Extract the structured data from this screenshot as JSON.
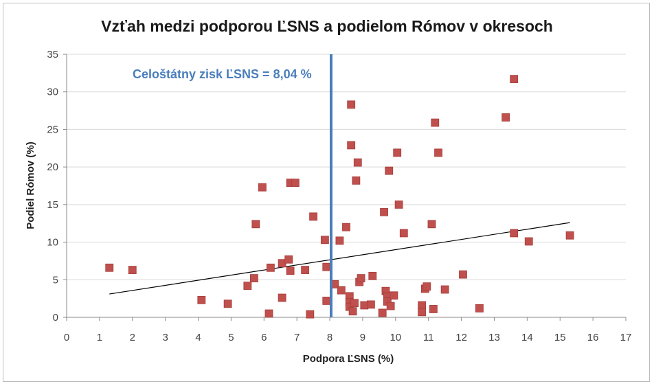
{
  "chart_data": {
    "type": "scatter",
    "title": "Vzťah medzi podporou ĽSNS a podielom Rómov v okresoch",
    "xlabel": "Podpora ĽSNS (%)",
    "ylabel": "Podiel Rómov (%)",
    "xlim": [
      0,
      17
    ],
    "ylim": [
      0,
      35
    ],
    "xticks": [
      "0",
      "1",
      "2",
      "3",
      "4",
      "5",
      "6",
      "7",
      "8",
      "9",
      "10",
      "11",
      "12",
      "13",
      "14",
      "15",
      "16",
      "17"
    ],
    "yticks": [
      "0",
      "5",
      "10",
      "15",
      "20",
      "25",
      "30",
      "35"
    ],
    "grid": "horizontal",
    "legend": "none",
    "colors": {
      "points": "#c0504d",
      "vline": "#4a7ebb",
      "trendline": "#000000",
      "grid": "#d9d9d9"
    },
    "reference_line": {
      "x": 8.04,
      "label": "Celoštátny zisk ĽSNS = 8,04 %"
    },
    "trendline": {
      "x": [
        1.3,
        15.3
      ],
      "y": [
        3.1,
        12.6
      ]
    },
    "points": [
      {
        "x": 1.3,
        "y": 6.6
      },
      {
        "x": 2.0,
        "y": 6.3
      },
      {
        "x": 4.1,
        "y": 2.3
      },
      {
        "x": 4.9,
        "y": 1.8
      },
      {
        "x": 5.5,
        "y": 4.2
      },
      {
        "x": 5.7,
        "y": 5.2
      },
      {
        "x": 5.75,
        "y": 12.4
      },
      {
        "x": 5.95,
        "y": 17.3
      },
      {
        "x": 6.15,
        "y": 0.5
      },
      {
        "x": 6.2,
        "y": 6.6
      },
      {
        "x": 6.55,
        "y": 2.6
      },
      {
        "x": 6.55,
        "y": 7.2
      },
      {
        "x": 6.75,
        "y": 7.7
      },
      {
        "x": 6.8,
        "y": 6.2
      },
      {
        "x": 6.8,
        "y": 17.9
      },
      {
        "x": 6.95,
        "y": 17.9
      },
      {
        "x": 7.25,
        "y": 6.3
      },
      {
        "x": 7.4,
        "y": 0.4
      },
      {
        "x": 7.5,
        "y": 13.4
      },
      {
        "x": 7.85,
        "y": 10.3
      },
      {
        "x": 7.9,
        "y": 2.2
      },
      {
        "x": 7.9,
        "y": 6.7
      },
      {
        "x": 8.15,
        "y": 4.4
      },
      {
        "x": 8.3,
        "y": 10.2
      },
      {
        "x": 8.35,
        "y": 3.6
      },
      {
        "x": 8.5,
        "y": 12.0
      },
      {
        "x": 8.6,
        "y": 2.8
      },
      {
        "x": 8.6,
        "y": 2.0
      },
      {
        "x": 8.6,
        "y": 1.4
      },
      {
        "x": 8.65,
        "y": 22.9
      },
      {
        "x": 8.65,
        "y": 28.3
      },
      {
        "x": 8.7,
        "y": 0.8
      },
      {
        "x": 8.75,
        "y": 1.9
      },
      {
        "x": 8.8,
        "y": 18.2
      },
      {
        "x": 8.85,
        "y": 20.6
      },
      {
        "x": 8.9,
        "y": 4.7
      },
      {
        "x": 8.95,
        "y": 5.2
      },
      {
        "x": 9.05,
        "y": 1.6
      },
      {
        "x": 9.25,
        "y": 1.7
      },
      {
        "x": 9.3,
        "y": 5.5
      },
      {
        "x": 9.6,
        "y": 0.6
      },
      {
        "x": 9.65,
        "y": 14.0
      },
      {
        "x": 9.7,
        "y": 3.5
      },
      {
        "x": 9.75,
        "y": 2.8
      },
      {
        "x": 9.75,
        "y": 2.1
      },
      {
        "x": 9.8,
        "y": 19.5
      },
      {
        "x": 9.85,
        "y": 1.5
      },
      {
        "x": 9.95,
        "y": 2.9
      },
      {
        "x": 10.05,
        "y": 21.9
      },
      {
        "x": 10.1,
        "y": 15.0
      },
      {
        "x": 10.25,
        "y": 11.2
      },
      {
        "x": 10.8,
        "y": 1.6
      },
      {
        "x": 10.8,
        "y": 0.7
      },
      {
        "x": 10.9,
        "y": 3.8
      },
      {
        "x": 10.95,
        "y": 4.1
      },
      {
        "x": 11.1,
        "y": 12.4
      },
      {
        "x": 11.15,
        "y": 1.1
      },
      {
        "x": 11.2,
        "y": 25.9
      },
      {
        "x": 11.3,
        "y": 21.9
      },
      {
        "x": 11.5,
        "y": 3.7
      },
      {
        "x": 12.05,
        "y": 5.7
      },
      {
        "x": 12.55,
        "y": 1.2
      },
      {
        "x": 13.35,
        "y": 26.6
      },
      {
        "x": 13.6,
        "y": 11.2
      },
      {
        "x": 13.6,
        "y": 31.7
      },
      {
        "x": 14.05,
        "y": 10.1
      },
      {
        "x": 15.3,
        "y": 10.9
      }
    ]
  }
}
